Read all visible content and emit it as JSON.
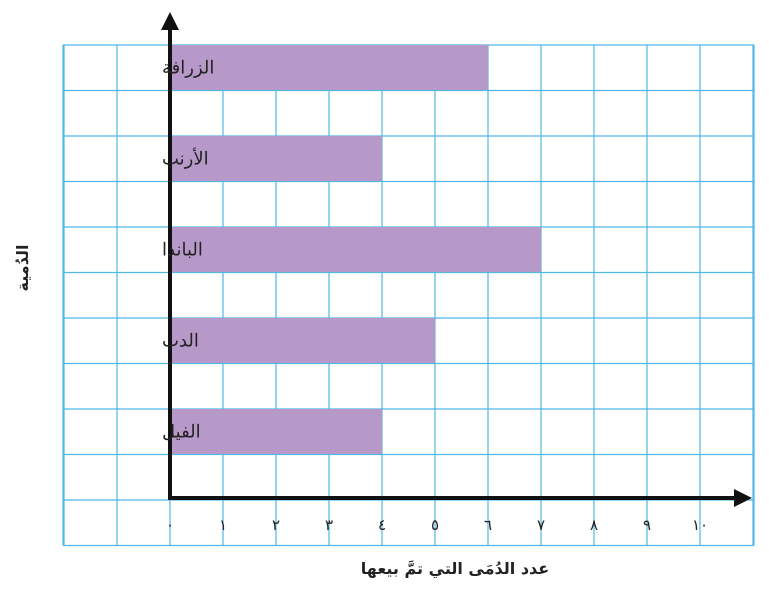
{
  "chart_data": {
    "type": "bar",
    "orientation": "horizontal",
    "categories": [
      "الزرافة",
      "الأرنب",
      "الباندا",
      "الدب",
      "الفيل"
    ],
    "values": [
      6,
      4,
      7,
      5,
      4
    ],
    "xlabel": "عدد الدُمَى التي تمَّ بيعها",
    "ylabel": "الدُمية",
    "x_ticks": [
      "٠",
      "١",
      "٢",
      "٣",
      "٤",
      "٥",
      "٦",
      "٧",
      "٨",
      "٩",
      "١٠"
    ],
    "xlim": [
      0,
      10
    ],
    "grid": true,
    "colors": {
      "bar": "#b799c9",
      "grid": "#4fb8e6",
      "axis": "#111111"
    }
  }
}
